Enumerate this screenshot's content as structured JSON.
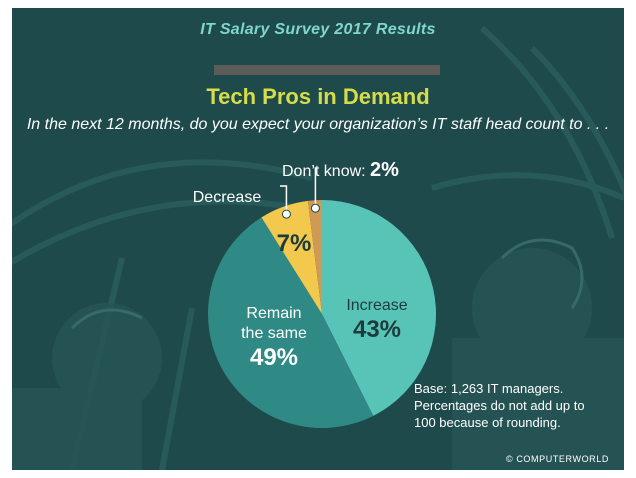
{
  "header": {
    "text": "IT Salary Survey 2017 Results"
  },
  "title": "Tech Pros in Demand",
  "question": "In the next 12 months, do you expect your organization’s IT staff head count to . . .",
  "footnote": {
    "lines": [
      "Base: 1,263 IT managers.",
      "Percentages do not add up to",
      "100 because of rounding."
    ]
  },
  "credit": "© COMPUTERWORLD",
  "colors": {
    "background": "#1e4a4b",
    "increase": "#58c4b8",
    "remain": "#2f8a86",
    "decrease": "#f2c94c",
    "dont_know": "#cf9a54",
    "title": "#d6dd4a",
    "header": "#7fd6cd"
  },
  "chart_data": {
    "type": "pie",
    "title": "Tech Pros in Demand",
    "slices": [
      {
        "key": "increase",
        "label": "Increase",
        "value": 43,
        "display": "43%"
      },
      {
        "key": "remain",
        "label": "Remain the same",
        "label_lines": [
          "Remain",
          "the same"
        ],
        "value": 49,
        "display": "49%"
      },
      {
        "key": "decrease",
        "label": "Decrease",
        "value": 7,
        "display": "7%"
      },
      {
        "key": "dont_know",
        "label": "Don’t know:",
        "value": 2,
        "display": "2%"
      }
    ]
  }
}
